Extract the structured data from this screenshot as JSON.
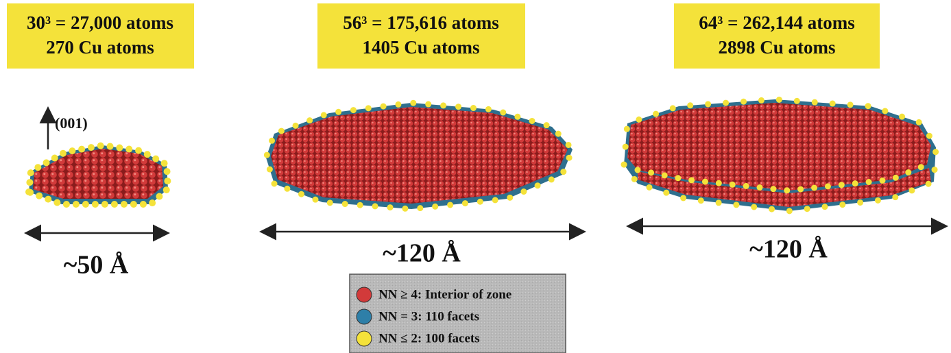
{
  "panels": [
    {
      "line1": "30³ = 27,000 atoms",
      "line2": "270 Cu atoms",
      "size": "~50 Å",
      "axis_label": "(001)"
    },
    {
      "line1": "56³ = 175,616 atoms",
      "line2": "1405 Cu atoms",
      "size": "~120 Å"
    },
    {
      "line1": "64³ = 262,144 atoms",
      "line2": "2898 Cu atoms",
      "size": "~120 Å"
    }
  ],
  "legend": {
    "items": [
      {
        "label": "NN ≥ 4: Interior of zone"
      },
      {
        "label": "NN = 3: 110 facets"
      },
      {
        "label": "NN ≤ 2: 100 facets"
      }
    ]
  }
}
